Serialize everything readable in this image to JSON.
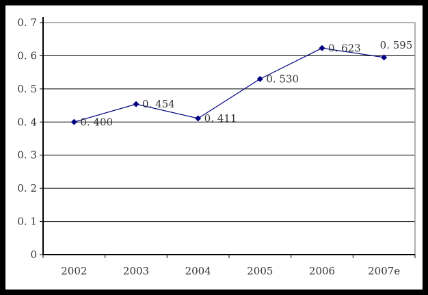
{
  "chart_data": {
    "type": "line",
    "title": "",
    "xlabel": "",
    "ylabel": "",
    "categories": [
      "2002",
      "2003",
      "2004",
      "2005",
      "2006",
      "2007e"
    ],
    "values": [
      0.4,
      0.454,
      0.411,
      0.53,
      0.623,
      0.595
    ],
    "point_labels": [
      "0.400",
      "0.454",
      "0.411",
      "0.530",
      "0.623",
      "0.595"
    ],
    "label_placements": [
      "right",
      "right",
      "right",
      "right",
      "right",
      "above"
    ],
    "ylim": [
      0,
      0.7
    ],
    "ytick_interval": 0.1,
    "ytick_labels": [
      "0",
      "0.1",
      "0.2",
      "0.3",
      "0.4",
      "0.5",
      "0.6",
      "0.7"
    ],
    "grid": true,
    "legend": "none",
    "marker": "diamond",
    "colors": {
      "series": "#000080",
      "gridline": "#000000",
      "axis": "#000000",
      "plot_border": "#969696",
      "text": "#333333",
      "background": "#ffffff",
      "frame": "#000000"
    }
  }
}
